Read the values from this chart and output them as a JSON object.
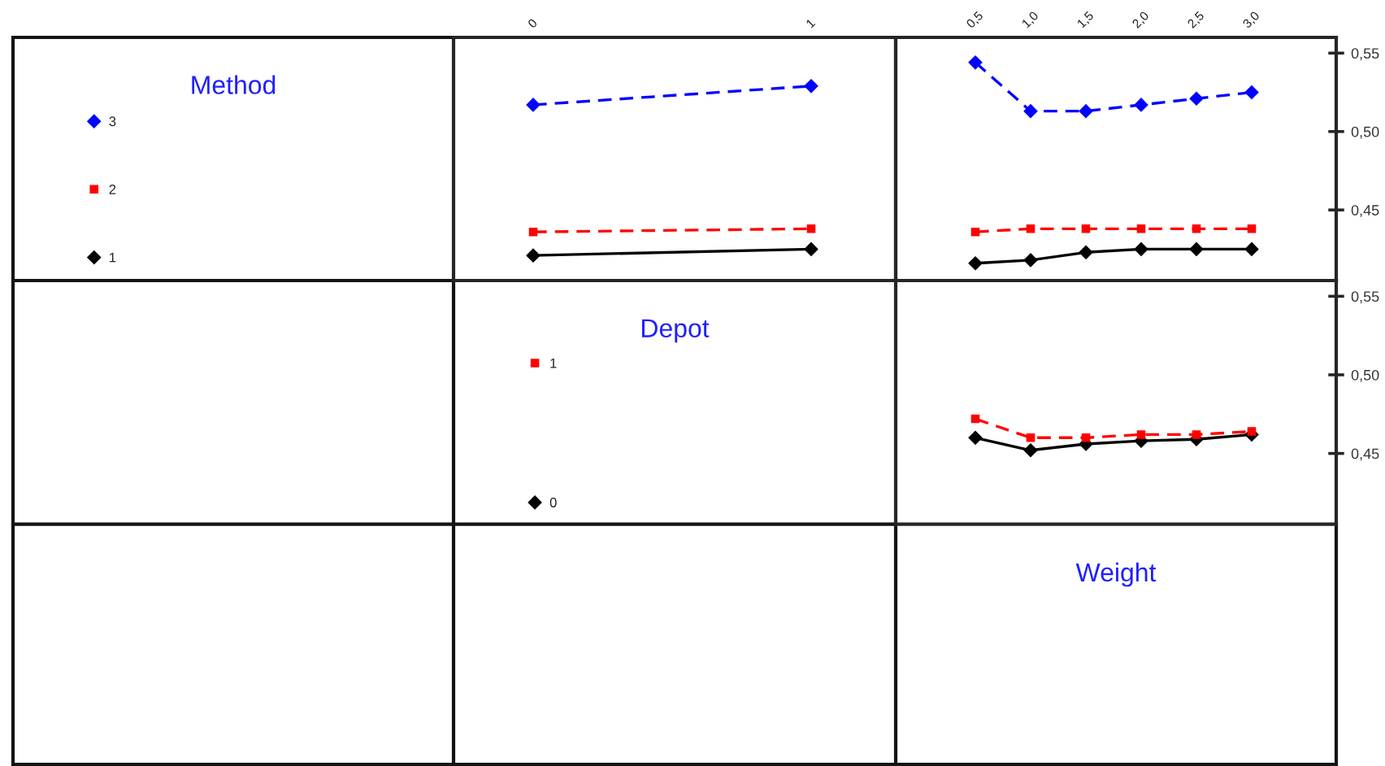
{
  "chart_data": [
    {
      "type": "line",
      "categories": [
        "0",
        "1"
      ],
      "series": [
        {
          "name": "1",
          "color": "#000000",
          "marker": "diamond",
          "line_style": "solid",
          "values": [
            0.421,
            0.425
          ]
        },
        {
          "name": "2",
          "color": "#ff0000",
          "marker": "square",
          "line_style": "dashed",
          "values": [
            0.436,
            0.438
          ]
        },
        {
          "name": "3",
          "color": "#0000ff",
          "marker": "diamond",
          "line_style": "dashed",
          "values": [
            0.517,
            0.529
          ]
        }
      ],
      "ylim": [
        0.405,
        0.56
      ],
      "tick_labels": "x",
      "legend": "left",
      "legend_title": "Method"
    },
    {
      "type": "line",
      "categories": [
        "0,5",
        "1,0",
        "1,5",
        "2,0",
        "2,5",
        "3,0"
      ],
      "series": [
        {
          "color": "#000000",
          "marker": "diamond",
          "line_style": "solid",
          "values": [
            0.416,
            0.418,
            0.423,
            0.425,
            0.425,
            0.425
          ]
        },
        {
          "color": "#ff0000",
          "marker": "square",
          "line_style": "dashed",
          "values": [
            0.436,
            0.438,
            0.438,
            0.438,
            0.438,
            0.438
          ]
        },
        {
          "color": "#0000ff",
          "marker": "diamond",
          "line_style": "dashed",
          "values": [
            0.544,
            0.513,
            0.513,
            0.517,
            0.521,
            0.525
          ]
        }
      ],
      "ylim": [
        0.405,
        0.56
      ],
      "yticks": [
        {
          "value": 0.45,
          "label": "0,45"
        },
        {
          "value": 0.5,
          "label": "0,50"
        },
        {
          "value": 0.55,
          "label": "0,55"
        }
      ]
    },
    {
      "type": "line",
      "categories": [
        "0,5",
        "1,0",
        "1,5",
        "2,0",
        "2,5",
        "3,0"
      ],
      "series": [
        {
          "name": "0",
          "color": "#000000",
          "marker": "diamond",
          "line_style": "solid",
          "values": [
            0.46,
            0.452,
            0.456,
            0.458,
            0.459,
            0.462
          ]
        },
        {
          "name": "1",
          "color": "#ff0000",
          "marker": "square",
          "line_style": "dashed",
          "values": [
            0.472,
            0.46,
            0.46,
            0.462,
            0.462,
            0.464
          ]
        }
      ],
      "ylim": [
        0.405,
        0.56
      ],
      "yticks": [
        {
          "value": 0.45,
          "label": "0,45"
        },
        {
          "value": 0.5,
          "label": "0,50"
        },
        {
          "value": 0.55,
          "label": "0,55"
        }
      ],
      "tick_labels": "y",
      "legend": "left",
      "legend_title": "Depot",
      "xlabel": "Weight"
    }
  ]
}
